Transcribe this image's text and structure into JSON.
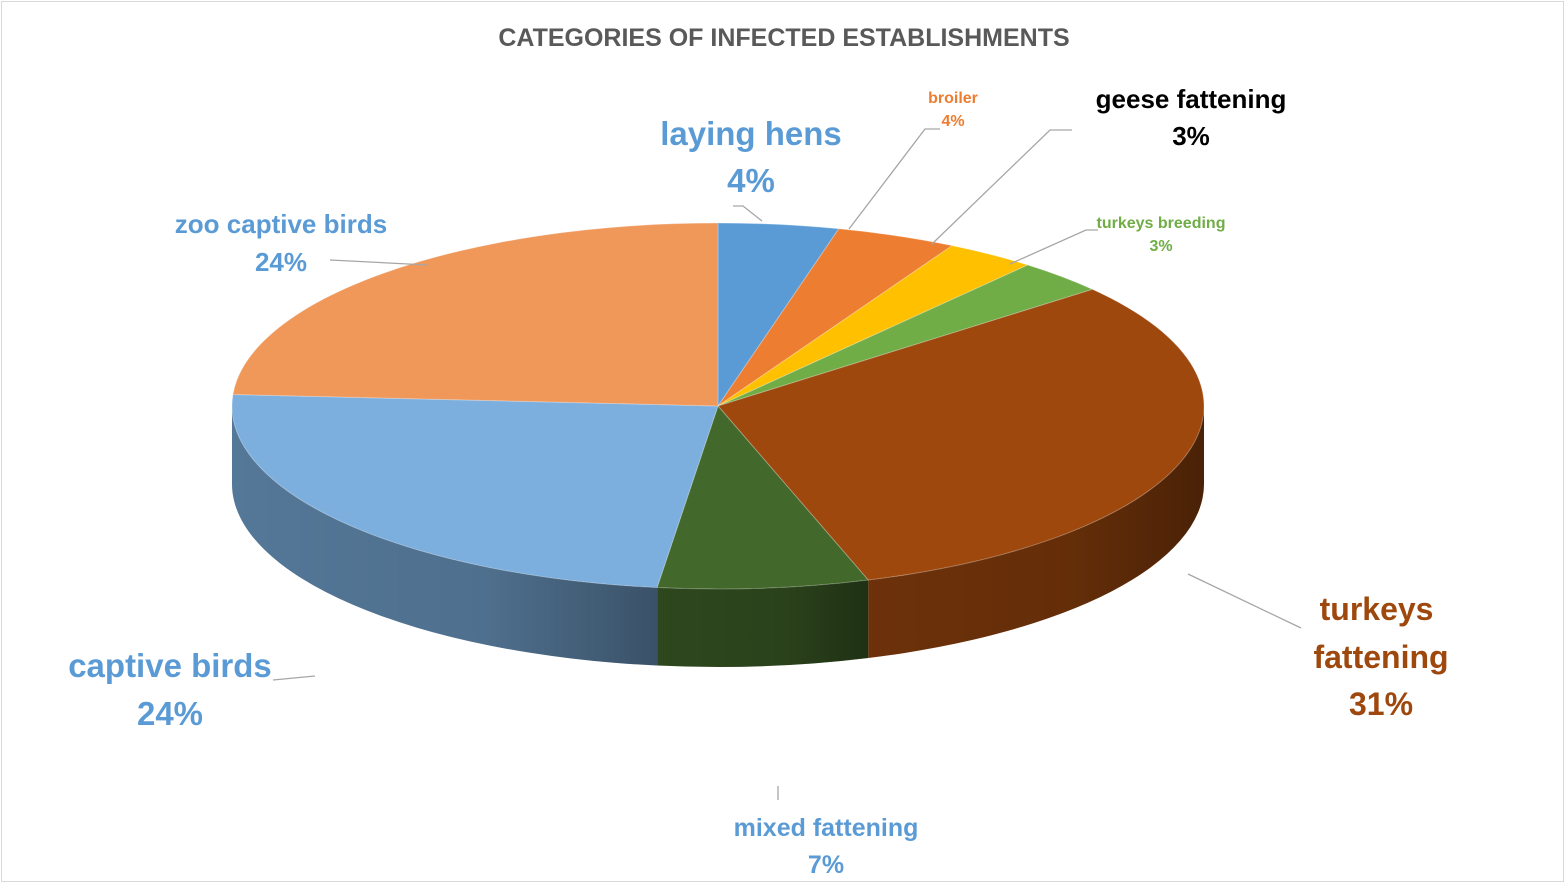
{
  "chart_data": {
    "type": "pie",
    "title": "CATEGORIES OF INFECTED ESTABLISHMENTS",
    "style": "3d",
    "slices": [
      {
        "name": "laying hens",
        "value": 4,
        "label": "4%",
        "color": "#5b9bd5",
        "label_color": "#5b9bd5"
      },
      {
        "name": "broiler",
        "value": 4,
        "label": "4%",
        "color": "#ed7d31",
        "label_color": "#ed7d31"
      },
      {
        "name": "geese fattening",
        "value": 3,
        "label": "3%",
        "color": "#ffc000",
        "label_color": "#000000"
      },
      {
        "name": "turkeys breeding",
        "value": 3,
        "label": "3%",
        "color": "#70ad47",
        "label_color": "#70ad47"
      },
      {
        "name": "turkeys fattening",
        "value": 31,
        "label": "31%",
        "color": "#9e480e",
        "label_color": "#9e480e"
      },
      {
        "name": "mixed fattening",
        "value": 7,
        "label": "7%",
        "color": "#43682b",
        "label_color": "#5b9bd5"
      },
      {
        "name": "captive birds",
        "value": 24,
        "label": "24%",
        "color": "#7cafde",
        "label_color": "#5b9bd5"
      },
      {
        "name": "zoo captive birds",
        "value": 24,
        "label": "24%",
        "color": "#f0975a",
        "label_color": "#5b9bd5"
      }
    ]
  }
}
